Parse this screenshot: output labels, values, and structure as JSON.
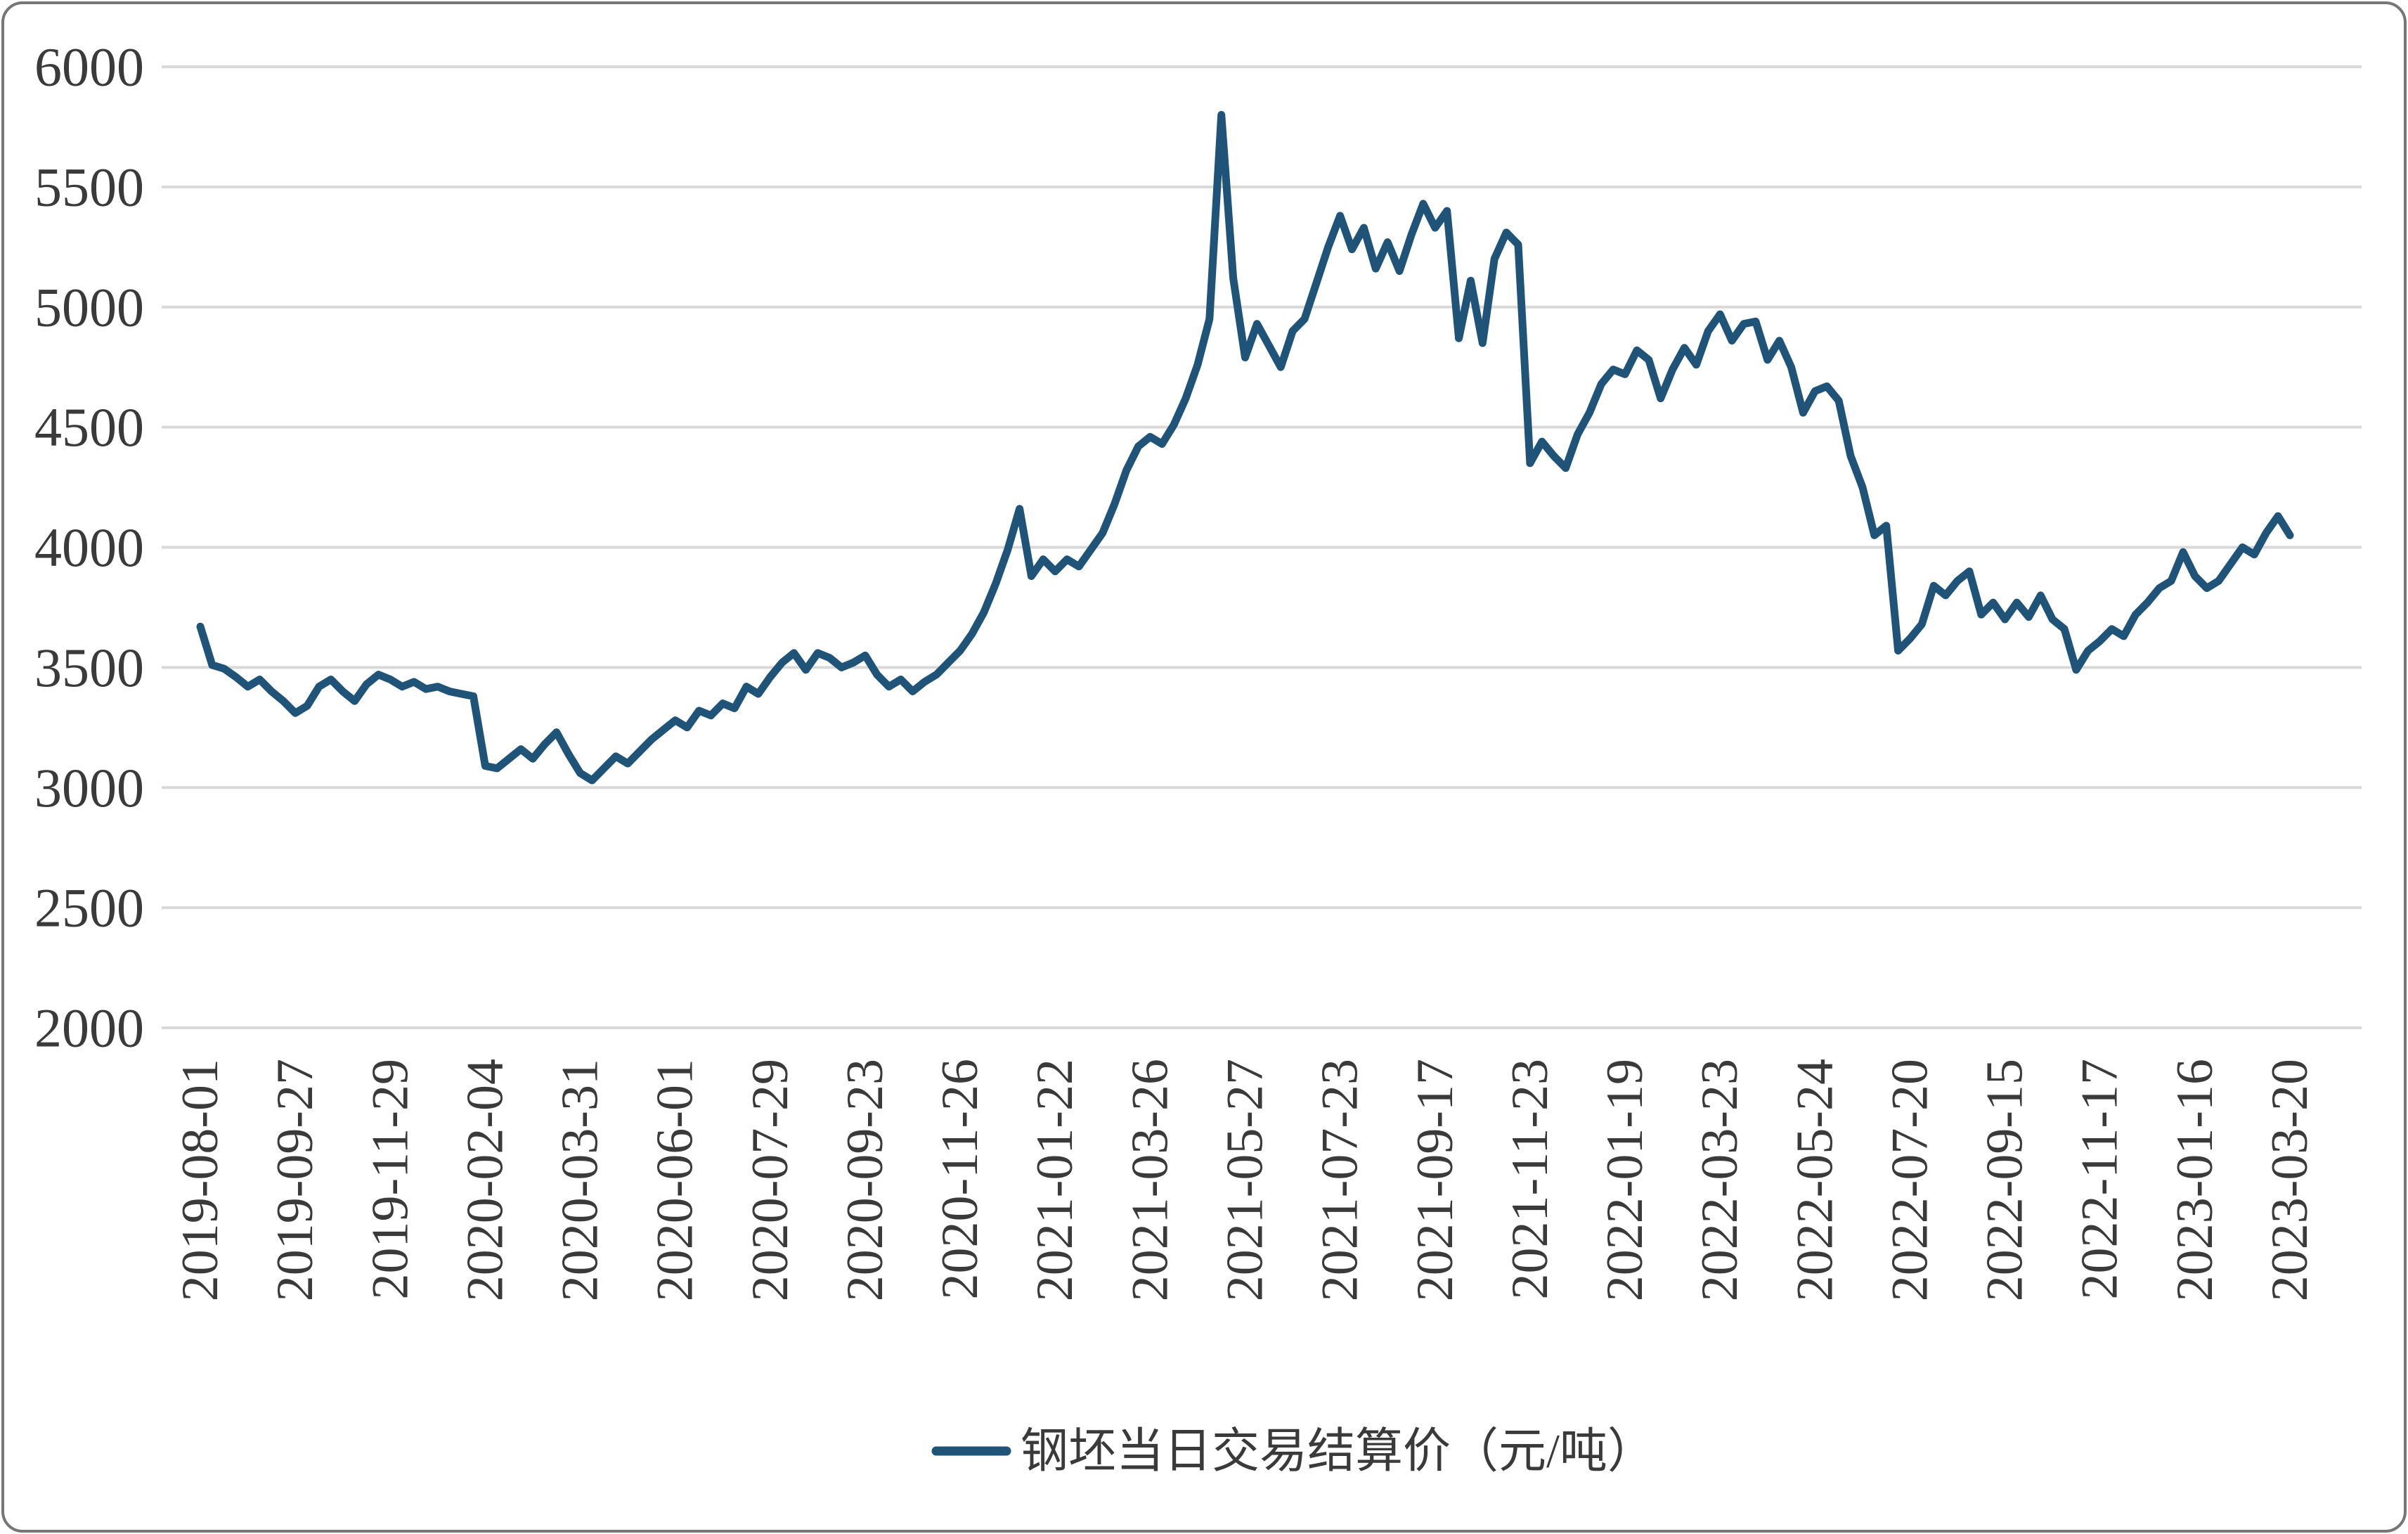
{
  "chart_data": {
    "type": "line",
    "title": "",
    "xlabel": "",
    "ylabel": "",
    "ylim": [
      2000,
      6000
    ],
    "grid": true,
    "legend_position": "bottom",
    "line_color": "#1F5478",
    "grid_color": "#D9D9D9",
    "text_color": "#3A3A3A",
    "y_ticks": [
      6000,
      5500,
      5000,
      4500,
      4000,
      3500,
      3000,
      2500,
      2000
    ],
    "x_tick_labels": [
      "2019-08-01",
      "2019-09-27",
      "2019-11-29",
      "2020-02-04",
      "2020-03-31",
      "2020-06-01",
      "2020-07-29",
      "2020-09-23",
      "2020-11-26",
      "2021-01-22",
      "2021-03-26",
      "2021-05-27",
      "2021-07-23",
      "2021-09-17",
      "2021-11-23",
      "2022-01-19",
      "2022-03-23",
      "2022-05-24",
      "2022-07-20",
      "2022-09-15",
      "2022-11-17",
      "2023-01-16",
      "2023-03-20"
    ],
    "x_tick_every": 8,
    "series": [
      {
        "name": "钢坯当日交易结算价（元/吨）",
        "values": [
          3670,
          3510,
          3495,
          3460,
          3420,
          3450,
          3400,
          3360,
          3310,
          3340,
          3420,
          3450,
          3400,
          3360,
          3430,
          3470,
          3450,
          3420,
          3440,
          3410,
          3420,
          3400,
          3390,
          3380,
          3090,
          3080,
          3120,
          3160,
          3120,
          3180,
          3230,
          3140,
          3060,
          3030,
          3080,
          3130,
          3100,
          3150,
          3200,
          3240,
          3280,
          3250,
          3320,
          3300,
          3350,
          3330,
          3420,
          3390,
          3460,
          3520,
          3560,
          3490,
          3560,
          3540,
          3500,
          3520,
          3550,
          3470,
          3420,
          3450,
          3400,
          3440,
          3470,
          3520,
          3570,
          3640,
          3730,
          3850,
          3990,
          4160,
          3880,
          3950,
          3900,
          3950,
          3920,
          3990,
          4060,
          4180,
          4320,
          4420,
          4460,
          4430,
          4510,
          4620,
          4760,
          4950,
          5800,
          5120,
          4790,
          4930,
          4840,
          4750,
          4900,
          4950,
          5100,
          5250,
          5380,
          5240,
          5330,
          5160,
          5270,
          5150,
          5300,
          5430,
          5330,
          5400,
          4870,
          5110,
          4850,
          5200,
          5310,
          5260,
          4350,
          4440,
          4380,
          4330,
          4470,
          4560,
          4680,
          4740,
          4720,
          4820,
          4780,
          4620,
          4740,
          4830,
          4760,
          4900,
          4970,
          4860,
          4930,
          4940,
          4780,
          4860,
          4750,
          4560,
          4650,
          4670,
          4610,
          4380,
          4250,
          4050,
          4090,
          3570,
          3620,
          3680,
          3840,
          3800,
          3860,
          3900,
          3720,
          3770,
          3700,
          3770,
          3710,
          3800,
          3700,
          3660,
          3490,
          3570,
          3610,
          3660,
          3630,
          3720,
          3770,
          3830,
          3860,
          3980,
          3880,
          3830,
          3860,
          3930,
          4000,
          3970,
          4060,
          4130,
          4050
        ]
      }
    ]
  },
  "legend": {
    "label": "钢坯当日交易结算价（元/吨）"
  }
}
